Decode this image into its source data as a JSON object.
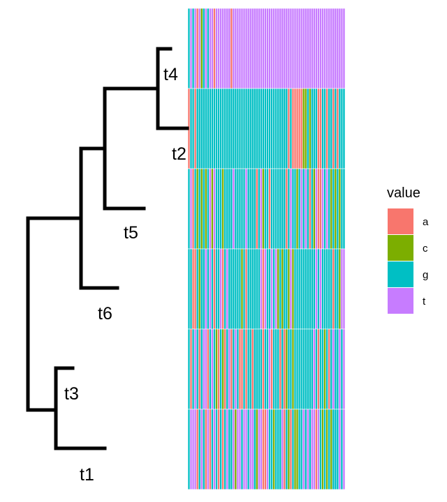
{
  "chart_data": {
    "type": "heatmap",
    "title": "",
    "tree": {
      "tips": [
        "t4",
        "t2",
        "t5",
        "t6",
        "t3",
        "t1"
      ],
      "row_order": [
        "t4",
        "t2",
        "t5",
        "t6",
        "t3",
        "t1"
      ]
    },
    "legend": {
      "title": "value",
      "placement": "right",
      "entries": [
        {
          "key": "a",
          "label": "a",
          "color": "#F8766D"
        },
        {
          "key": "c",
          "label": "c",
          "color": "#7CAE00"
        },
        {
          "key": "g",
          "label": "g",
          "color": "#00BFC4"
        },
        {
          "key": "t",
          "label": "t",
          "color": "#C77CFF"
        }
      ]
    },
    "rows": [
      {
        "label": "t4",
        "sequence": "gtgtatcgtgttatttttttattttttttttttttttttttttttttttttttttttttttttttttttttttt"
      },
      {
        "label": "t2",
        "sequence": "aggagggggggggggggggggggggggggggggggggggggggggggagaaaaaccgcgggaaggaggagaggg"
      },
      {
        "label": "t5",
        "sequence": "gtagcgcgcgtctgggcggggtgggggtggggagtcggagggggggagtggcgtgtgagctaatgtgcgcgcgg"
      },
      {
        "label": "t6",
        "sequence": "ggaagcggtgtgaggtagtggggggcgaggggggtatggtgtcgcggctcggggggggggtgtgggggaggctt"
      },
      {
        "label": "t3",
        "sequence": "gagtgagttagtgcagcagtagtgaagaggaggggaggtagggagacggcgggggggggtgaggcgagtggtgt"
      },
      {
        "label": "t1",
        "sequence": "gtttagtgatagtgagagtggtcttgttgttgcttaatggcgggtagcagccggtgtgttatgcgcgcgggtgt"
      }
    ]
  }
}
